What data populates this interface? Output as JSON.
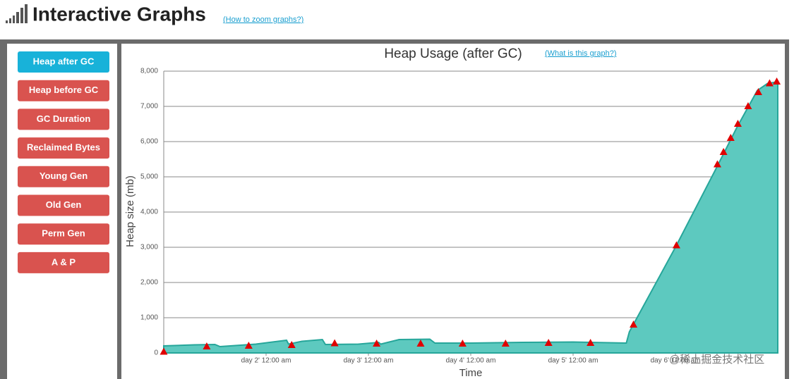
{
  "header": {
    "title": "Interactive Graphs",
    "help_link": "(How to zoom graphs?)"
  },
  "menu": {
    "buttons": [
      "Heap after GC",
      "Heap before GC",
      "GC Duration",
      "Reclaimed Bytes",
      "Young Gen",
      "Old Gen",
      "Perm Gen",
      "A & P"
    ],
    "active": 0,
    "active_color": "#18b2d9",
    "color": "#d9534f"
  },
  "watermark": "@稀土掘金技术社区",
  "chart_data": {
    "type": "area",
    "title": "Heap Usage (after GC)",
    "help_link": "(What is this graph?)",
    "x_label": "Time",
    "y_label": "Heap size (mb)",
    "xlim": [
      1,
      7
    ],
    "ylim": [
      0,
      8000
    ],
    "xticks": [
      {
        "value": 2,
        "label": "day 2' 12:00 am"
      },
      {
        "value": 3,
        "label": "day 3' 12:00 am"
      },
      {
        "value": 4,
        "label": "day 4' 12:00 am"
      },
      {
        "value": 5,
        "label": "day 5' 12:00 am"
      },
      {
        "value": 6,
        "label": "day 6' 12:00 am"
      }
    ],
    "yticks": [
      0,
      {
        "value": 1000,
        "label": "1,000"
      },
      {
        "value": 2000,
        "label": "2,000"
      },
      {
        "value": 3000,
        "label": "3,000"
      },
      {
        "value": 4000,
        "label": "4,000"
      },
      {
        "value": 5000,
        "label": "5,000"
      },
      {
        "value": 6000,
        "label": "6,000"
      },
      {
        "value": 7000,
        "label": "7,000"
      },
      {
        "value": 8000,
        "label": "8,000"
      }
    ],
    "grid": true,
    "series": [
      {
        "type": "area",
        "color": "#26a69a",
        "fill": "#5dc9bf",
        "x": [
          1.0,
          1.3,
          1.5,
          1.55,
          1.9,
          2.2,
          2.22,
          2.35,
          2.55,
          2.58,
          2.9,
          3.1,
          3.12,
          3.3,
          3.6,
          3.65,
          4.0,
          4.5,
          5.0,
          5.52,
          5.55,
          6.0,
          6.4,
          6.6,
          6.8,
          6.9,
          7.0
        ],
        "values": [
          200,
          230,
          240,
          180,
          250,
          360,
          250,
          330,
          380,
          240,
          250,
          300,
          250,
          380,
          390,
          280,
          280,
          300,
          310,
          280,
          600,
          3000,
          5250,
          6400,
          7450,
          7650,
          7700
        ]
      },
      {
        "type": "scatter",
        "marker": "triangle",
        "color": "#e00000",
        "x": [
          1.0,
          1.42,
          1.83,
          2.25,
          2.67,
          3.08,
          3.51,
          3.92,
          4.34,
          4.76,
          5.17,
          5.59,
          6.01,
          6.41,
          6.47,
          6.54,
          6.61,
          6.71,
          6.81,
          6.92,
          6.99
        ],
        "values": [
          30,
          180,
          200,
          220,
          270,
          260,
          260,
          260,
          260,
          280,
          280,
          800,
          3050,
          5350,
          5700,
          6100,
          6500,
          7000,
          7400,
          7650,
          7700
        ]
      }
    ]
  }
}
